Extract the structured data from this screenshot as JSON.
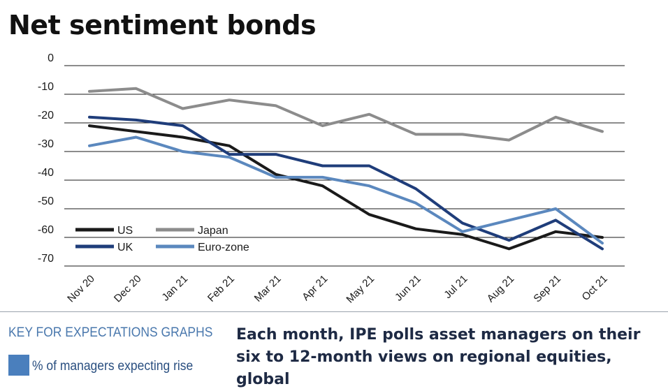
{
  "chart_data": {
    "type": "line",
    "title": "Net sentiment bonds",
    "xlabel": "",
    "ylabel": "",
    "categories": [
      "Nov 20",
      "Dec 20",
      "Jan 21",
      "Feb 21",
      "Mar 21",
      "Apr 21",
      "May 21",
      "Jun 21",
      "Jul 21",
      "Aug 21",
      "Sep 21",
      "Oct 21"
    ],
    "yticks": [
      "0",
      "-10",
      "-20",
      "-30",
      "-40",
      "-50",
      "-60",
      "-70"
    ],
    "ylim": [
      -70,
      0
    ],
    "grid": true,
    "legend_position": "bottom-left",
    "series": [
      {
        "name": "US",
        "color": "#1a1a1a",
        "values": [
          -21,
          -23,
          -25,
          -28,
          -38,
          -42,
          -52,
          -57,
          -59,
          -64,
          -58,
          -60
        ]
      },
      {
        "name": "Japan",
        "color": "#8c8c8c",
        "values": [
          -9,
          -8,
          -15,
          -12,
          -14,
          -21,
          -17,
          -24,
          -24,
          -26,
          -18,
          -23
        ]
      },
      {
        "name": "UK",
        "color": "#1f3d7a",
        "values": [
          -18,
          -19,
          -21,
          -31,
          -31,
          -35,
          -35,
          -43,
          -55,
          -61,
          -54,
          -64
        ]
      },
      {
        "name": "Euro-zone",
        "color": "#5b88be",
        "values": [
          -28,
          -25,
          -30,
          -32,
          -39,
          -39,
          -42,
          -48,
          -58,
          -54,
          -50,
          -62
        ]
      }
    ]
  },
  "key": {
    "title": "KEY FOR EXPECTATIONS GRAPHS",
    "swatch_color": "#4a7fbd",
    "item_label": "% of managers expecting rise"
  },
  "intro_text": "Each month, IPE polls asset managers on their six to 12-month views on regional equities, global"
}
